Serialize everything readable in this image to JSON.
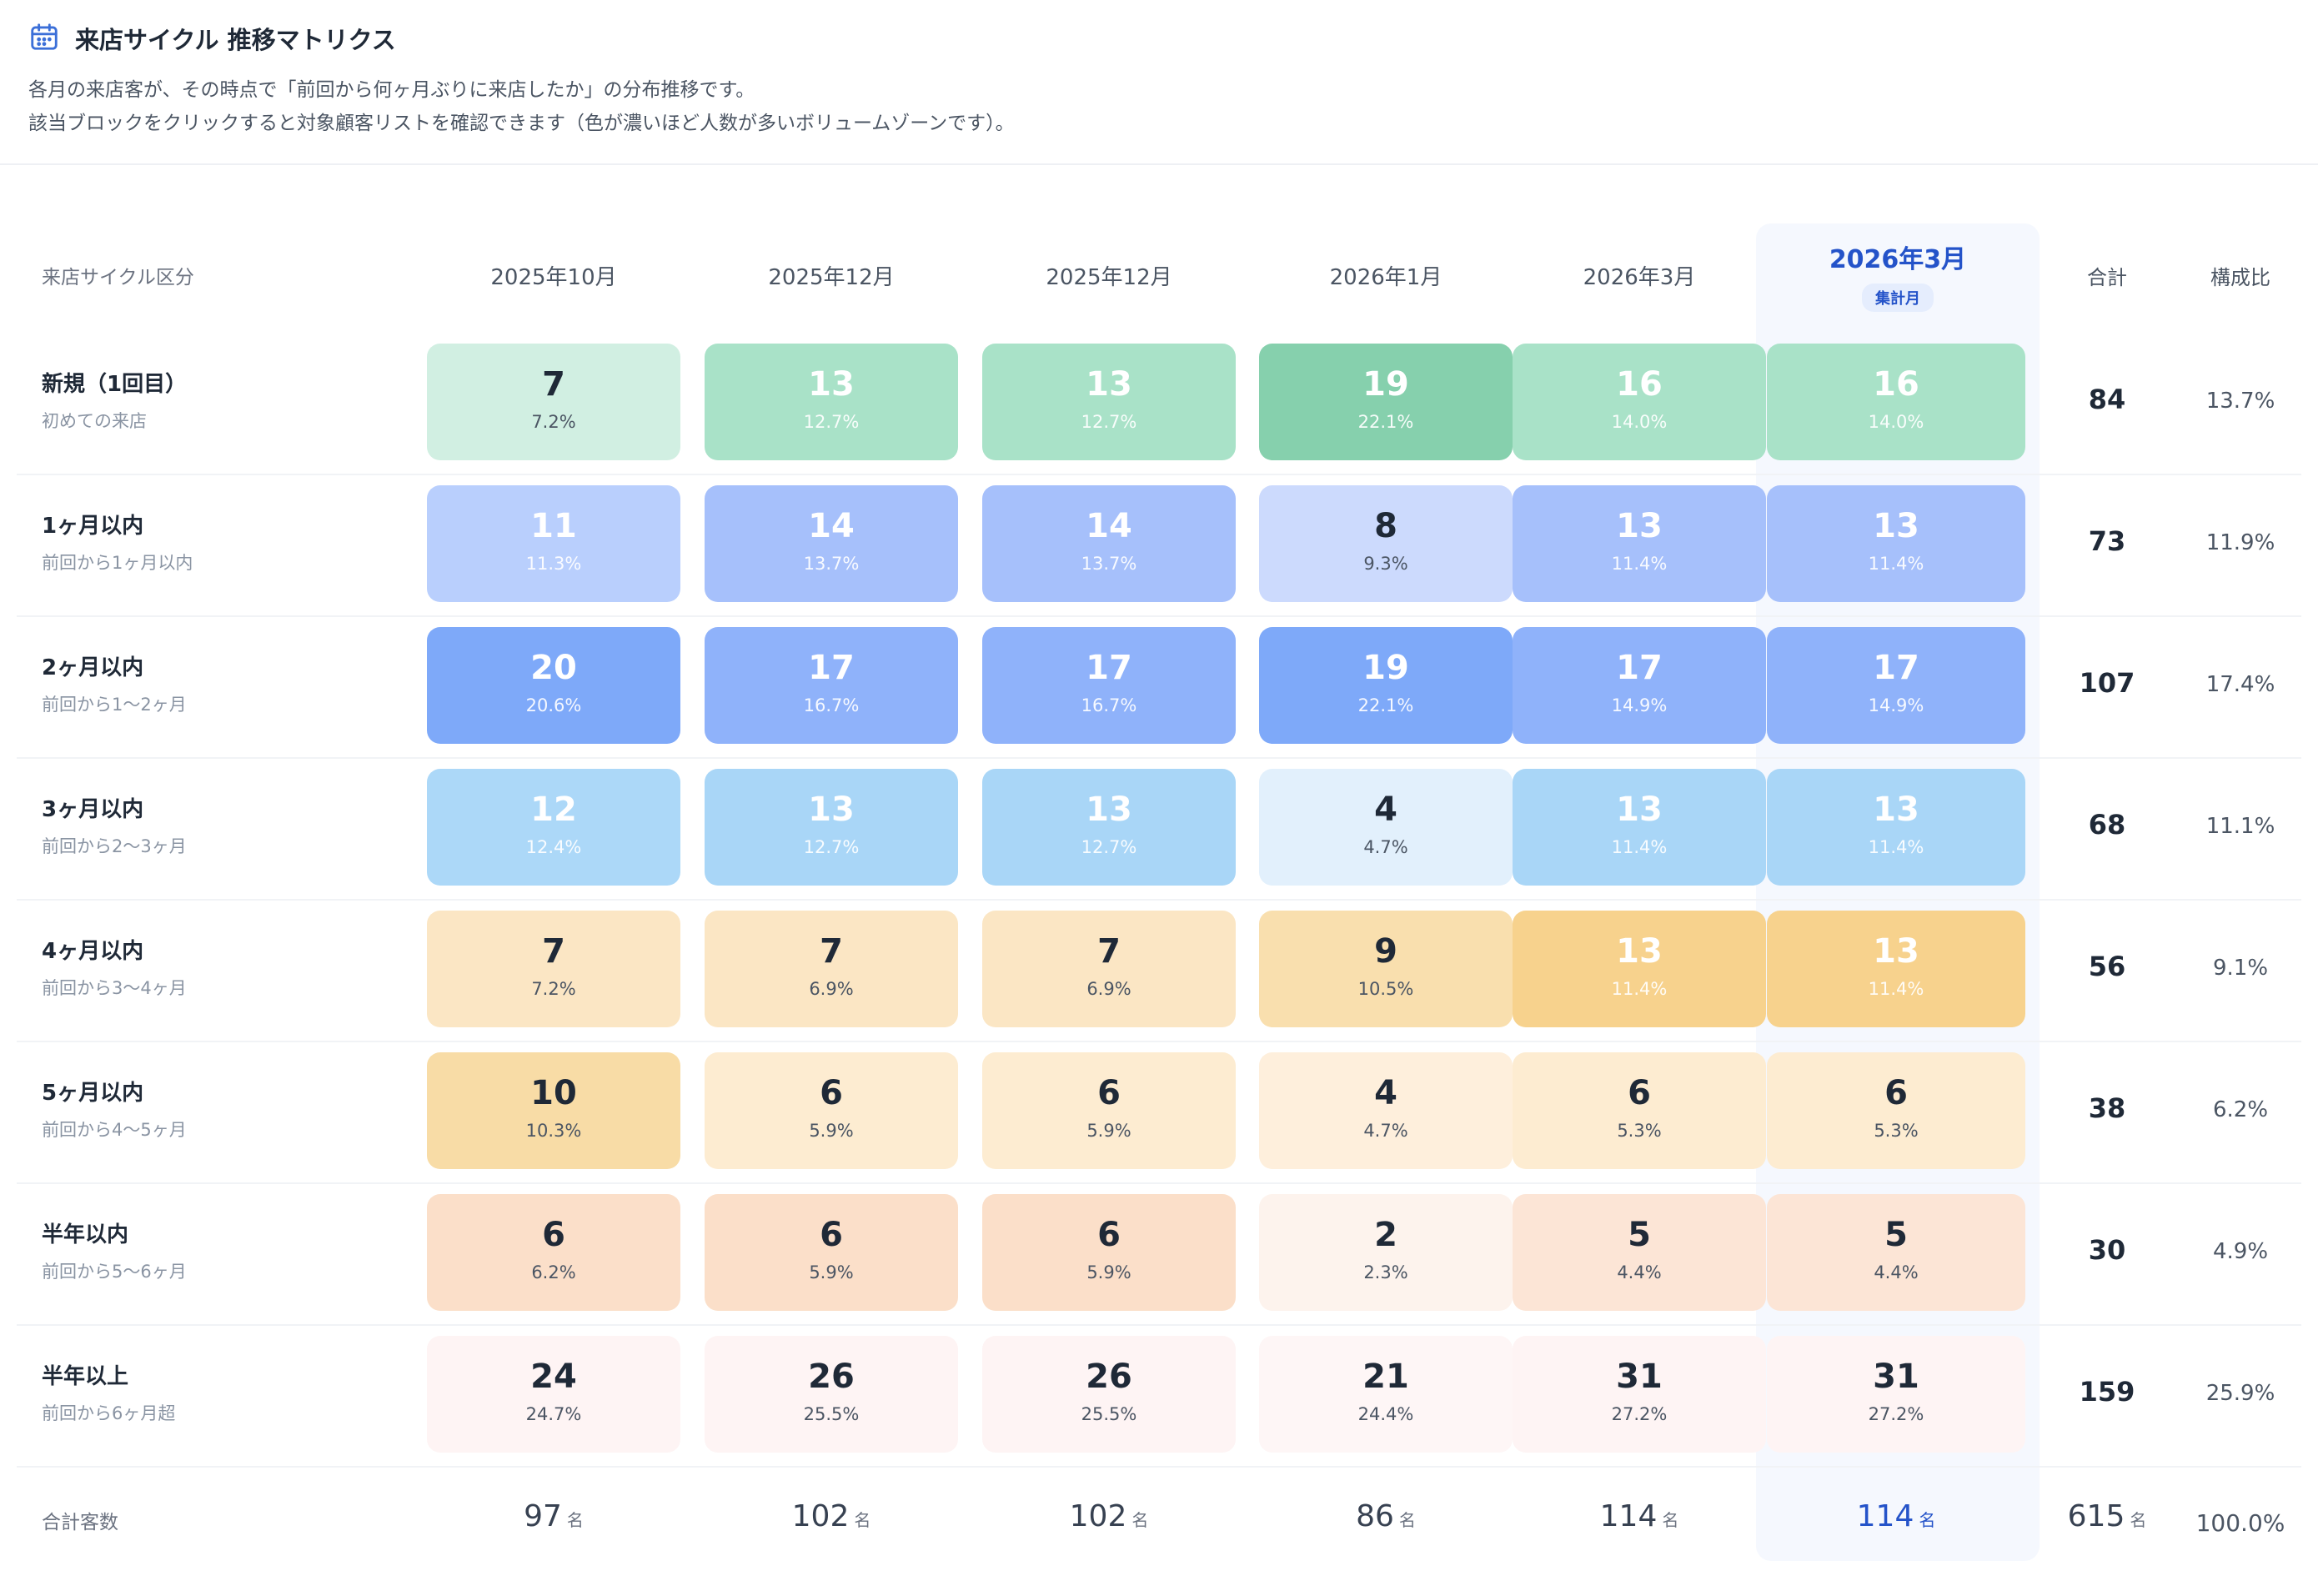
{
  "title": "来店サイクル 推移マトリクス",
  "description": [
    "各月の来店客が、その時点で「前回から何ヶ月ぶりに来店したか」の分布推移です。",
    "該当ブロックをクリックすると対象顧客リストを確認できます（色が濃いほど人数が多いボリュームゾーンです）。"
  ],
  "header": {
    "category_label": "来店サイクル区分",
    "months": [
      "2025年10月",
      "2025年12月",
      "2025年12月",
      "2026年1月",
      "2026年3月",
      "2026年3月"
    ],
    "highlight_badge": "集計月",
    "total_label": "合計",
    "ratio_label": "構成比"
  },
  "rows": [
    {
      "name": "新規（1回目）",
      "sub": "初めての来店",
      "color": "green",
      "total": "84",
      "ratio": "13.7%",
      "cells": [
        {
          "v": "7",
          "p": "7.2%"
        },
        {
          "v": "13",
          "p": "12.7%"
        },
        {
          "v": "13",
          "p": "12.7%"
        },
        {
          "v": "19",
          "p": "22.1%"
        },
        {
          "v": "16",
          "p": "14.0%"
        },
        {
          "v": "16",
          "p": "14.0%"
        }
      ]
    },
    {
      "name": "1ヶ月以内",
      "sub": "前回から1ヶ月以内",
      "color": "blue",
      "total": "73",
      "ratio": "11.9%",
      "cells": [
        {
          "v": "11",
          "p": "11.3%"
        },
        {
          "v": "14",
          "p": "13.7%"
        },
        {
          "v": "14",
          "p": "13.7%"
        },
        {
          "v": "8",
          "p": "9.3%"
        },
        {
          "v": "13",
          "p": "11.4%"
        },
        {
          "v": "13",
          "p": "11.4%"
        }
      ]
    },
    {
      "name": "2ヶ月以内",
      "sub": "前回から1〜2ヶ月",
      "color": "blue",
      "total": "107",
      "ratio": "17.4%",
      "cells": [
        {
          "v": "20",
          "p": "20.6%"
        },
        {
          "v": "17",
          "p": "16.7%"
        },
        {
          "v": "17",
          "p": "16.7%"
        },
        {
          "v": "19",
          "p": "22.1%"
        },
        {
          "v": "17",
          "p": "14.9%"
        },
        {
          "v": "17",
          "p": "14.9%"
        }
      ]
    },
    {
      "name": "3ヶ月以内",
      "sub": "前回から2〜3ヶ月",
      "color": "sky",
      "total": "68",
      "ratio": "11.1%",
      "cells": [
        {
          "v": "12",
          "p": "12.4%"
        },
        {
          "v": "13",
          "p": "12.7%"
        },
        {
          "v": "13",
          "p": "12.7%"
        },
        {
          "v": "4",
          "p": "4.7%"
        },
        {
          "v": "13",
          "p": "11.4%"
        },
        {
          "v": "13",
          "p": "11.4%"
        }
      ]
    },
    {
      "name": "4ヶ月以内",
      "sub": "前回から3〜4ヶ月",
      "color": "amber",
      "total": "56",
      "ratio": "9.1%",
      "cells": [
        {
          "v": "7",
          "p": "7.2%"
        },
        {
          "v": "7",
          "p": "6.9%"
        },
        {
          "v": "7",
          "p": "6.9%"
        },
        {
          "v": "9",
          "p": "10.5%"
        },
        {
          "v": "13",
          "p": "11.4%"
        },
        {
          "v": "13",
          "p": "11.4%"
        }
      ]
    },
    {
      "name": "5ヶ月以内",
      "sub": "前回から4〜5ヶ月",
      "color": "amber",
      "total": "38",
      "ratio": "6.2%",
      "cells": [
        {
          "v": "10",
          "p": "10.3%"
        },
        {
          "v": "6",
          "p": "5.9%"
        },
        {
          "v": "6",
          "p": "5.9%"
        },
        {
          "v": "4",
          "p": "4.7%"
        },
        {
          "v": "6",
          "p": "5.3%"
        },
        {
          "v": "6",
          "p": "5.3%"
        }
      ]
    },
    {
      "name": "半年以内",
      "sub": "前回から5〜6ヶ月",
      "color": "peach",
      "total": "30",
      "ratio": "4.9%",
      "cells": [
        {
          "v": "6",
          "p": "6.2%"
        },
        {
          "v": "6",
          "p": "5.9%"
        },
        {
          "v": "6",
          "p": "5.9%"
        },
        {
          "v": "2",
          "p": "2.3%"
        },
        {
          "v": "5",
          "p": "4.4%"
        },
        {
          "v": "5",
          "p": "4.4%"
        }
      ]
    },
    {
      "name": "半年以上",
      "sub": "前回から6ヶ月超",
      "color": "rose",
      "total": "159",
      "ratio": "25.9%",
      "cells": [
        {
          "v": "24",
          "p": "24.7%"
        },
        {
          "v": "26",
          "p": "25.5%"
        },
        {
          "v": "26",
          "p": "25.5%"
        },
        {
          "v": "21",
          "p": "24.4%"
        },
        {
          "v": "31",
          "p": "27.2%"
        },
        {
          "v": "31",
          "p": "27.2%"
        }
      ]
    }
  ],
  "footer": {
    "label": "合計客数",
    "unit": "名",
    "totals": [
      "97",
      "102",
      "102",
      "86",
      "114",
      "114"
    ],
    "grand_total": "615",
    "grand_ratio": "100.0%"
  },
  "colors": {
    "green": [
      "#d1efe2",
      "#a9e2c8",
      "#a9e2c8",
      "#86d0ad",
      "#a9e2c8",
      "#a9e2c8"
    ],
    "blue1": [
      "#b9cffd",
      "#a6c0fb",
      "#a6c0fb",
      "#ccdafd",
      "#a6c0fb",
      "#a6c0fb"
    ],
    "blue2": [
      "#7ea9f9",
      "#8fb2fa",
      "#8fb2fa",
      "#7ea9f9",
      "#8fb2fa",
      "#8fb2fa"
    ],
    "sky": [
      "#acd8f8",
      "#a9d6f7",
      "#a9d6f7",
      "#e2f0fc",
      "#a9d6f7",
      "#a9d6f7"
    ],
    "amber1": [
      "#fbe6c4",
      "#fbe6c4",
      "#fbe6c4",
      "#f9dfae",
      "#f7d28d",
      "#f7d28d"
    ],
    "amber2": [
      "#f8dca6",
      "#fdecd1",
      "#fdecd1",
      "#feefdc",
      "#fdecd1",
      "#fdecd1"
    ],
    "peach": [
      "#fbdfc9",
      "#fbdfc9",
      "#fbdfc9",
      "#fdf3ed",
      "#fce5d6",
      "#fce5d6"
    ],
    "rose": [
      "#fef4f4",
      "#fef4f4",
      "#fef4f4",
      "#fef6f6",
      "#fef4f4",
      "#fef4f4"
    ],
    "highlight": "#2453c9"
  }
}
